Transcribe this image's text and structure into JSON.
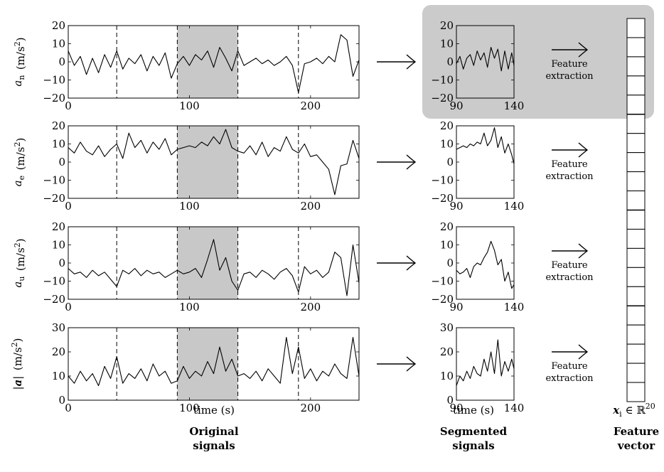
{
  "colors": {
    "shade": "#c8c8c8",
    "highlight_box": "#cbcbcb",
    "line": "#000000"
  },
  "icons": [
    "right-arrow-icon"
  ],
  "labels": {
    "time_left": "time (s)",
    "time_mid": "time (s)",
    "original": [
      "Original",
      "signals"
    ],
    "segmented": [
      "Segmented",
      "signals"
    ],
    "feature_vector": [
      "Feature",
      "vector"
    ],
    "feature_extraction": [
      "Feature",
      "extraction"
    ],
    "x_symbol": "x",
    "x_sub": "i",
    "in_R": "∈ ℝ",
    "R_sup": "20"
  },
  "chart_data": [
    {
      "type": "line",
      "ylabel": "a_n (m/s²)",
      "ylabel_parts": {
        "var": "a",
        "sub": "n",
        "unit": "(m/s",
        "sup": "2",
        "close": ")"
      },
      "xlim": [
        0,
        240
      ],
      "ylim": [
        -20,
        20
      ],
      "yticks": [
        "20",
        "10",
        "0",
        "−10",
        "−20"
      ],
      "ytick_values": [
        20,
        10,
        0,
        -10,
        -20
      ],
      "xticks": [
        "0",
        "100",
        "200"
      ],
      "xtick_values": [
        0,
        100,
        200
      ],
      "shaded": [
        90,
        140
      ],
      "dashed": [
        40,
        90,
        140,
        190
      ],
      "series_desc": "noisy around 0",
      "x": [
        0,
        5,
        10,
        15,
        20,
        25,
        30,
        35,
        40,
        45,
        50,
        55,
        60,
        65,
        70,
        75,
        80,
        85,
        90,
        95,
        100,
        105,
        110,
        115,
        120,
        125,
        130,
        135,
        140,
        145,
        150,
        155,
        160,
        165,
        170,
        175,
        180,
        185,
        190,
        195,
        200,
        205,
        210,
        215,
        220,
        225,
        230,
        235,
        240
      ],
      "y": [
        6,
        -2,
        3,
        -7,
        2,
        -6,
        4,
        -3,
        6,
        -4,
        2,
        -1,
        4,
        -5,
        3,
        -2,
        5,
        -9,
        -1,
        3,
        -2,
        4,
        1,
        6,
        -3,
        8,
        2,
        -5,
        6,
        -2,
        0,
        2,
        -1,
        1,
        -2,
        0,
        3,
        -2,
        -17,
        -1,
        0,
        2,
        -1,
        3,
        0,
        15,
        12,
        -8,
        1
      ],
      "seg": {
        "xlim": [
          90,
          140
        ],
        "ylim": [
          -20,
          20
        ],
        "yticks": [
          "20",
          "10",
          "0",
          "−10",
          "−20"
        ],
        "ytick_values": [
          20,
          10,
          0,
          -10,
          -20
        ],
        "xticks": [
          "90",
          "140"
        ],
        "xtick_values": [
          90,
          140
        ],
        "x": [
          90,
          93,
          96,
          99,
          102,
          105,
          108,
          111,
          114,
          117,
          120,
          123,
          126,
          129,
          132,
          135,
          138,
          140
        ],
        "y": [
          -1,
          3,
          -4,
          2,
          4,
          -2,
          6,
          1,
          5,
          -3,
          8,
          2,
          7,
          -5,
          6,
          -4,
          5,
          -2
        ]
      }
    },
    {
      "type": "line",
      "ylabel": "a_e (m/s²)",
      "ylabel_parts": {
        "var": "a",
        "sub": "e",
        "unit": "(m/s",
        "sup": "2",
        "close": ")"
      },
      "xlim": [
        0,
        240
      ],
      "ylim": [
        -20,
        20
      ],
      "yticks": [
        "20",
        "10",
        "0",
        "−10",
        "−20"
      ],
      "ytick_values": [
        20,
        10,
        0,
        -10,
        -20
      ],
      "xticks": [
        "0",
        "100",
        "200"
      ],
      "xtick_values": [
        0,
        100,
        200
      ],
      "shaded": [
        90,
        140
      ],
      "dashed": [
        40,
        90,
        140,
        190
      ],
      "x": [
        0,
        5,
        10,
        15,
        20,
        25,
        30,
        35,
        40,
        45,
        50,
        55,
        60,
        65,
        70,
        75,
        80,
        85,
        90,
        95,
        100,
        105,
        110,
        115,
        120,
        125,
        130,
        135,
        140,
        145,
        150,
        155,
        160,
        165,
        170,
        175,
        180,
        185,
        190,
        195,
        200,
        205,
        210,
        215,
        220,
        225,
        230,
        235,
        240
      ],
      "y": [
        8,
        5,
        11,
        6,
        4,
        9,
        3,
        7,
        10,
        2,
        16,
        8,
        12,
        5,
        11,
        7,
        13,
        4,
        7,
        8,
        9,
        8,
        11,
        9,
        14,
        10,
        18,
        8,
        6,
        5,
        9,
        4,
        11,
        3,
        8,
        6,
        14,
        7,
        5,
        10,
        3,
        4,
        0,
        -4,
        -18,
        -2,
        -1,
        12,
        2
      ],
      "seg": {
        "xlim": [
          90,
          140
        ],
        "ylim": [
          -20,
          20
        ],
        "yticks": [
          "20",
          "10",
          "0",
          "−10",
          "−20"
        ],
        "ytick_values": [
          20,
          10,
          0,
          -10,
          -20
        ],
        "xticks": [
          "90",
          "140"
        ],
        "xtick_values": [
          90,
          140
        ],
        "x": [
          90,
          93,
          96,
          99,
          102,
          105,
          108,
          111,
          114,
          117,
          120,
          123,
          126,
          129,
          132,
          135,
          138,
          140
        ],
        "y": [
          7,
          8,
          9,
          8,
          10,
          9,
          11,
          10,
          16,
          9,
          12,
          19,
          8,
          14,
          5,
          10,
          4,
          -1
        ]
      }
    },
    {
      "type": "line",
      "ylabel": "a_u (m/s²)",
      "ylabel_parts": {
        "var": "a",
        "sub": "u",
        "unit": "(m/s",
        "sup": "2",
        "close": ")"
      },
      "xlim": [
        0,
        240
      ],
      "ylim": [
        -20,
        20
      ],
      "yticks": [
        "20",
        "10",
        "0",
        "−10",
        "−20"
      ],
      "ytick_values": [
        20,
        10,
        0,
        -10,
        -20
      ],
      "xticks": [
        "0",
        "100",
        "200"
      ],
      "xtick_values": [
        0,
        100,
        200
      ],
      "shaded": [
        90,
        140
      ],
      "dashed": [
        40,
        90,
        140,
        190
      ],
      "x": [
        0,
        5,
        10,
        15,
        20,
        25,
        30,
        35,
        40,
        45,
        50,
        55,
        60,
        65,
        70,
        75,
        80,
        85,
        90,
        95,
        100,
        105,
        110,
        115,
        120,
        125,
        130,
        135,
        140,
        145,
        150,
        155,
        160,
        165,
        170,
        175,
        180,
        185,
        190,
        195,
        200,
        205,
        210,
        215,
        220,
        225,
        230,
        235,
        240
      ],
      "y": [
        -3,
        -6,
        -5,
        -8,
        -4,
        -7,
        -5,
        -9,
        -13,
        -4,
        -6,
        -3,
        -7,
        -4,
        -6,
        -5,
        -8,
        -6,
        -4,
        -6,
        -5,
        -3,
        -8,
        2,
        13,
        -4,
        3,
        -10,
        -15,
        -6,
        -5,
        -8,
        -4,
        -6,
        -9,
        -5,
        -3,
        -7,
        -16,
        -2,
        -6,
        -4,
        -8,
        -5,
        6,
        3,
        -18,
        10,
        -11
      ],
      "seg": {
        "xlim": [
          90,
          140
        ],
        "ylim": [
          -20,
          20
        ],
        "yticks": [
          "20",
          "10",
          "0",
          "−10",
          "−20"
        ],
        "ytick_values": [
          20,
          10,
          0,
          -10,
          -20
        ],
        "xticks": [
          "90",
          "140"
        ],
        "xtick_values": [
          90,
          140
        ],
        "x": [
          90,
          93,
          96,
          99,
          102,
          105,
          108,
          111,
          114,
          117,
          120,
          123,
          126,
          129,
          132,
          135,
          138,
          140
        ],
        "y": [
          -4,
          -6,
          -5,
          -3,
          -8,
          -2,
          0,
          -1,
          3,
          6,
          12,
          7,
          -1,
          2,
          -10,
          -5,
          -14,
          -12
        ]
      }
    },
    {
      "type": "line",
      "ylabel": "|a| (m/s²)",
      "ylabel_parts": {
        "var": "|a|",
        "sub": "",
        "unit": "(m/s",
        "sup": "2",
        "close": ")"
      },
      "xlim": [
        0,
        240
      ],
      "ylim": [
        0,
        30
      ],
      "yticks": [
        "30",
        "20",
        "10",
        "0"
      ],
      "ytick_values": [
        30,
        20,
        10,
        0
      ],
      "xticks": [
        "0",
        "100",
        "200"
      ],
      "xtick_values": [
        0,
        100,
        200
      ],
      "shaded": [
        90,
        140
      ],
      "dashed": [
        40,
        90,
        140,
        190
      ],
      "x": [
        0,
        5,
        10,
        15,
        20,
        25,
        30,
        35,
        40,
        45,
        50,
        55,
        60,
        65,
        70,
        75,
        80,
        85,
        90,
        95,
        100,
        105,
        110,
        115,
        120,
        125,
        130,
        135,
        140,
        145,
        150,
        155,
        160,
        165,
        170,
        175,
        180,
        185,
        190,
        195,
        200,
        205,
        210,
        215,
        220,
        225,
        230,
        235,
        240
      ],
      "y": [
        10,
        7,
        12,
        8,
        11,
        6,
        14,
        9,
        18,
        7,
        11,
        9,
        13,
        8,
        15,
        10,
        12,
        7,
        8,
        14,
        9,
        12,
        10,
        16,
        11,
        22,
        12,
        17,
        10,
        11,
        9,
        12,
        8,
        13,
        10,
        7,
        26,
        11,
        22,
        9,
        13,
        8,
        12,
        10,
        15,
        11,
        9,
        26,
        10
      ],
      "seg": {
        "xlim": [
          90,
          140
        ],
        "ylim": [
          0,
          30
        ],
        "yticks": [
          "30",
          "20",
          "10",
          "0"
        ],
        "ytick_values": [
          30,
          20,
          10,
          0
        ],
        "xticks": [
          "90",
          "140"
        ],
        "xtick_values": [
          90,
          140
        ],
        "x": [
          90,
          93,
          96,
          99,
          102,
          105,
          108,
          111,
          114,
          117,
          120,
          123,
          126,
          129,
          132,
          135,
          138,
          140
        ],
        "y": [
          6,
          10,
          8,
          12,
          9,
          14,
          11,
          10,
          17,
          12,
          20,
          11,
          25,
          10,
          16,
          12,
          17,
          13
        ]
      }
    }
  ]
}
